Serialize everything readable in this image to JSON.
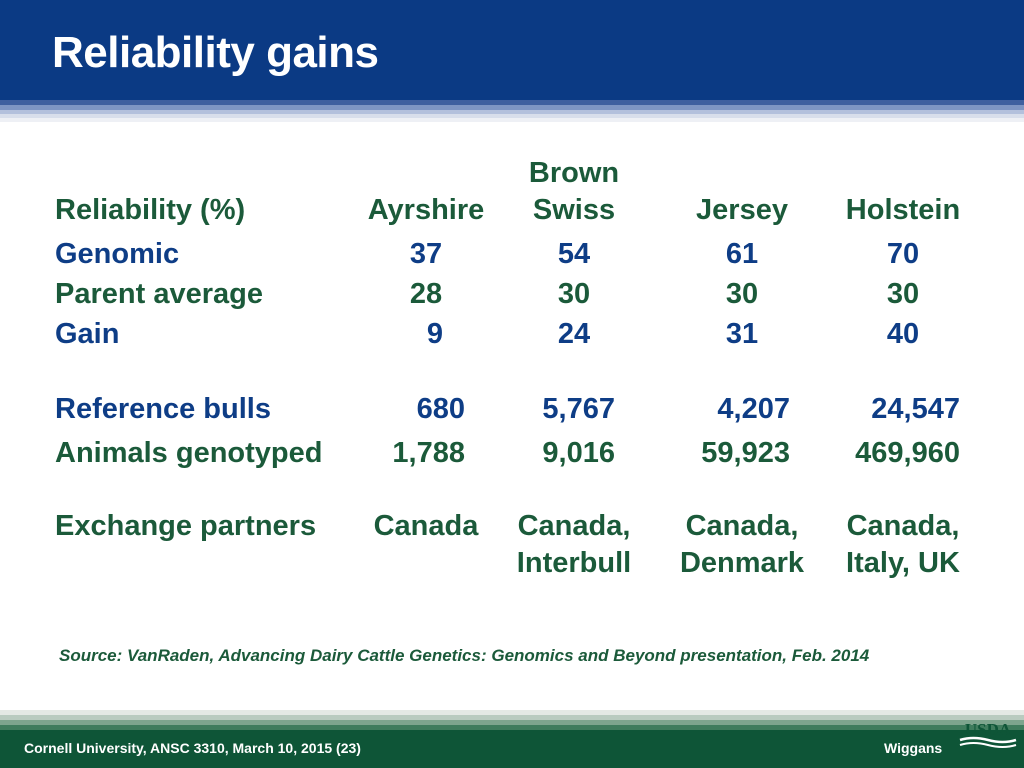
{
  "title": "Reliability gains",
  "table": {
    "header": {
      "label": "Reliability (%)",
      "breeds": [
        {
          "line1": "",
          "line2": "Ayrshire"
        },
        {
          "line1": "Brown",
          "line2": "Swiss"
        },
        {
          "line1": "",
          "line2": "Jersey"
        },
        {
          "line1": "",
          "line2": "Holstein"
        }
      ]
    },
    "rows": [
      {
        "label": "Genomic",
        "values": [
          "37",
          "54",
          "61",
          "70"
        ]
      },
      {
        "label": "Parent average",
        "values": [
          "28",
          "30",
          "30",
          "30"
        ]
      },
      {
        "label": "Gain",
        "values": [
          "9",
          "24",
          "31",
          "40"
        ]
      },
      {
        "label": "Reference bulls",
        "values": [
          "680",
          "5,767",
          "4,207",
          "24,547"
        ]
      },
      {
        "label": "Animals genotyped",
        "values": [
          "1,788",
          "9,016",
          "59,923",
          "469,960"
        ]
      }
    ],
    "exchange": {
      "label": "Exchange partners",
      "values": [
        {
          "line1": "Canada",
          "line2": ""
        },
        {
          "line1": "Canada,",
          "line2": "Interbull"
        },
        {
          "line1": "Canada,",
          "line2": "Denmark"
        },
        {
          "line1": "Canada,",
          "line2": "Italy, UK"
        }
      ]
    }
  },
  "source": "Source: VanRaden, Advancing Dairy Cattle Genetics: Genomics and Beyond presentation, Feb. 2014",
  "footer": {
    "left": "Cornell University, ANSC 3310, March 10, 2015 (23)",
    "right": "Wiggans",
    "logo_text": "USDA"
  },
  "colors": {
    "header_blue": "#0b3a84",
    "text_green": "#1b5a3a",
    "text_blue": "#0e3d86",
    "footer_green": "#0e5537"
  }
}
